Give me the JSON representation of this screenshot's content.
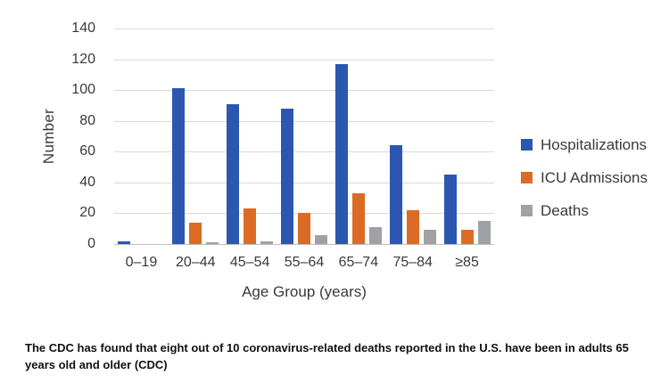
{
  "chart_data": {
    "type": "bar",
    "title": "",
    "categories": [
      "0–19",
      "20–44",
      "45–54",
      "55–64",
      "65–74",
      "75–84",
      "≥85"
    ],
    "series": [
      {
        "name": "Hospitalizations",
        "color": "#2b57b0",
        "values": [
          2,
          101,
          91,
          88,
          117,
          64,
          45
        ]
      },
      {
        "name": "ICU Admissions",
        "color": "#dc6b26",
        "values": [
          0,
          14,
          23,
          20,
          33,
          22,
          9
        ]
      },
      {
        "name": "Deaths",
        "color": "#9fa1a4",
        "values": [
          0,
          1,
          2,
          6,
          11,
          9,
          15
        ]
      }
    ],
    "xlabel": "Age Group (years)",
    "ylabel": "Number",
    "ylim": [
      0,
      140
    ],
    "ytick_step": 20,
    "grid": true,
    "legend_position": "right"
  },
  "colors": {
    "gridline": "#d9d9d9",
    "axis_line": "#bfbfbf",
    "tick_text": "#3a3a3a"
  },
  "caption": "The CDC has found that eight out of 10 coronavirus-related deaths reported in the U.S. have been in adults 65 years old and older (CDC)"
}
